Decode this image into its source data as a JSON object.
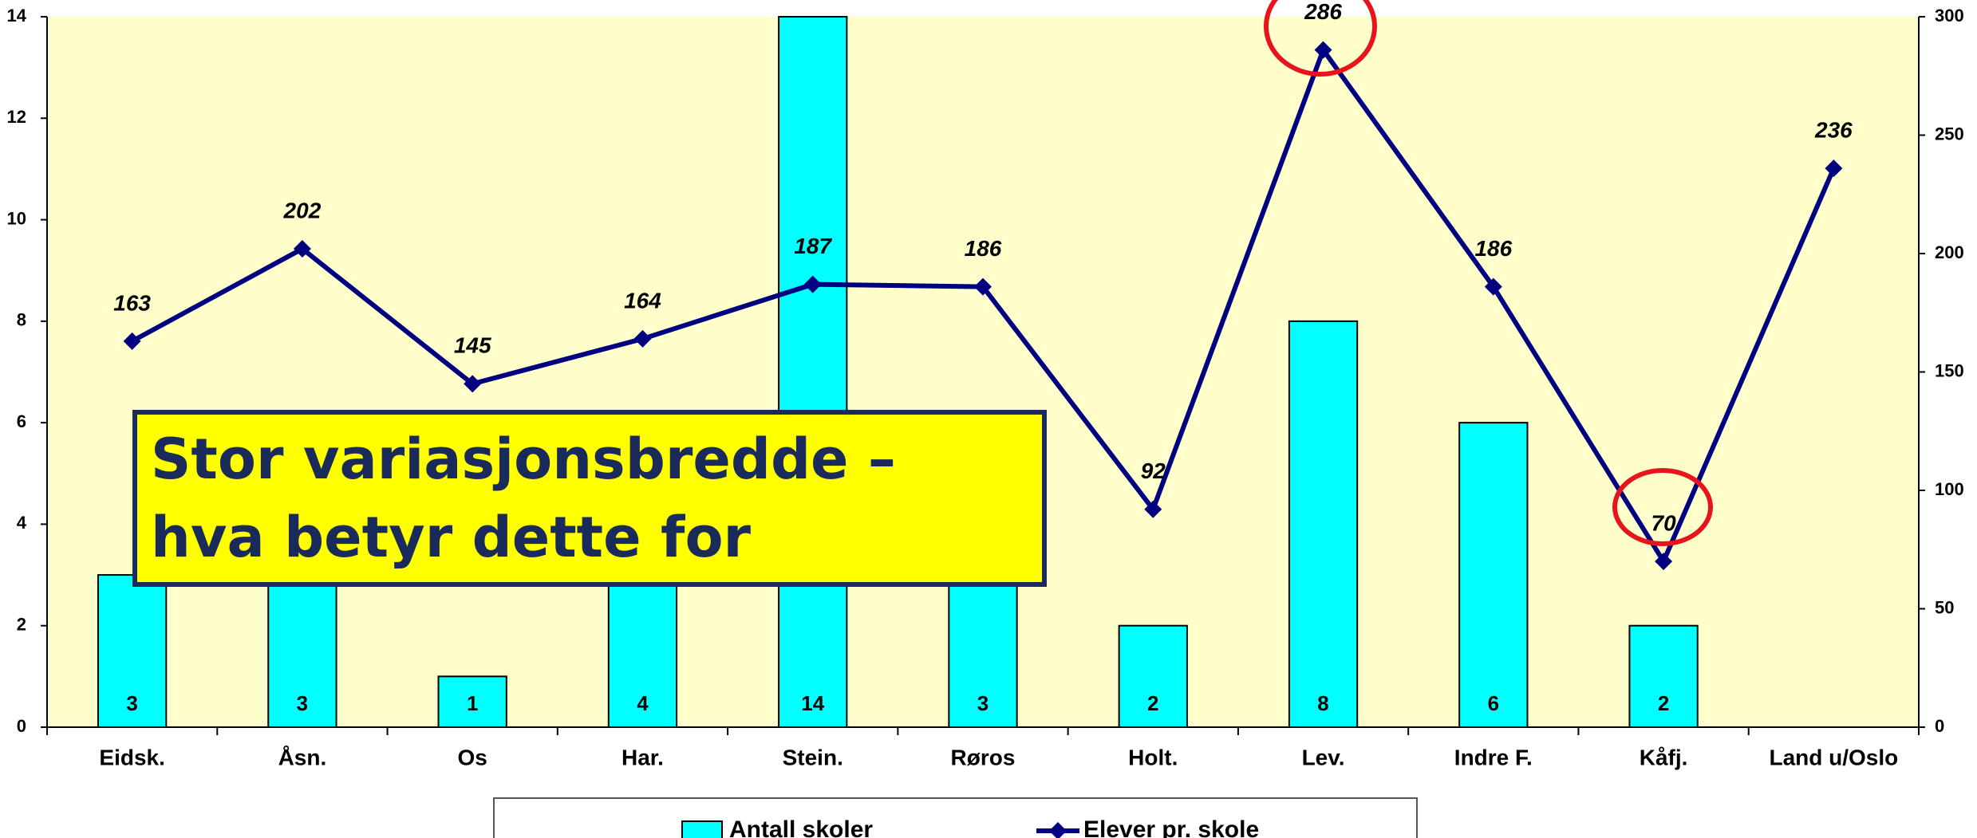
{
  "chart_data": {
    "type": "bar",
    "categories": [
      "Eidsk.",
      "Åsn.",
      "Os",
      "Har.",
      "Stein.",
      "Røros",
      "Holt.",
      "Lev.",
      "Indre F.",
      "Kåfj.",
      "Land u/Oslo"
    ],
    "series": [
      {
        "name": "Antall skoler",
        "type": "bar",
        "color": "#00ffff",
        "values": [
          3,
          3,
          1,
          4,
          14,
          3,
          2,
          8,
          6,
          2,
          null
        ]
      },
      {
        "name": "Elever pr. skole",
        "type": "line",
        "axis": "y2",
        "color": "#000080",
        "values": [
          163,
          202,
          145,
          164,
          187,
          186,
          92,
          286,
          186,
          70,
          236
        ]
      }
    ],
    "ylim": [
      0,
      14
    ],
    "yticks": [
      0,
      2,
      4,
      6,
      8,
      10,
      12,
      14
    ],
    "y2lim": [
      0,
      300
    ],
    "y2ticks": [
      0,
      50,
      100,
      150,
      200,
      250,
      300
    ],
    "annotation": "Stor variasjonsbredde – hva betyr dette for ressursbruken?"
  }
}
